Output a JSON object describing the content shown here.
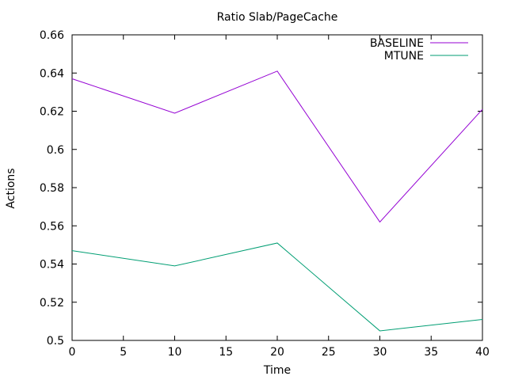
{
  "chart_data": {
    "type": "line",
    "title": "Ratio Slab/PageCache",
    "xlabel": "Time",
    "ylabel": "Actions",
    "x": [
      0,
      10,
      20,
      30,
      40
    ],
    "xlim": [
      0,
      40
    ],
    "ylim": [
      0.5,
      0.66
    ],
    "xticks": [
      0,
      5,
      10,
      15,
      20,
      25,
      30,
      35,
      40
    ],
    "yticks": [
      0.5,
      0.52,
      0.54,
      0.56,
      0.58,
      0.6,
      0.62,
      0.64,
      0.66
    ],
    "grid": false,
    "legend_position": "top-right",
    "series": [
      {
        "name": "BASELINE",
        "color": "#9400d3",
        "values": [
          0.637,
          0.619,
          0.641,
          0.562,
          0.621
        ]
      },
      {
        "name": "MTUNE",
        "color": "#009e73",
        "values": [
          0.547,
          0.539,
          0.551,
          0.505,
          0.511
        ]
      }
    ]
  }
}
